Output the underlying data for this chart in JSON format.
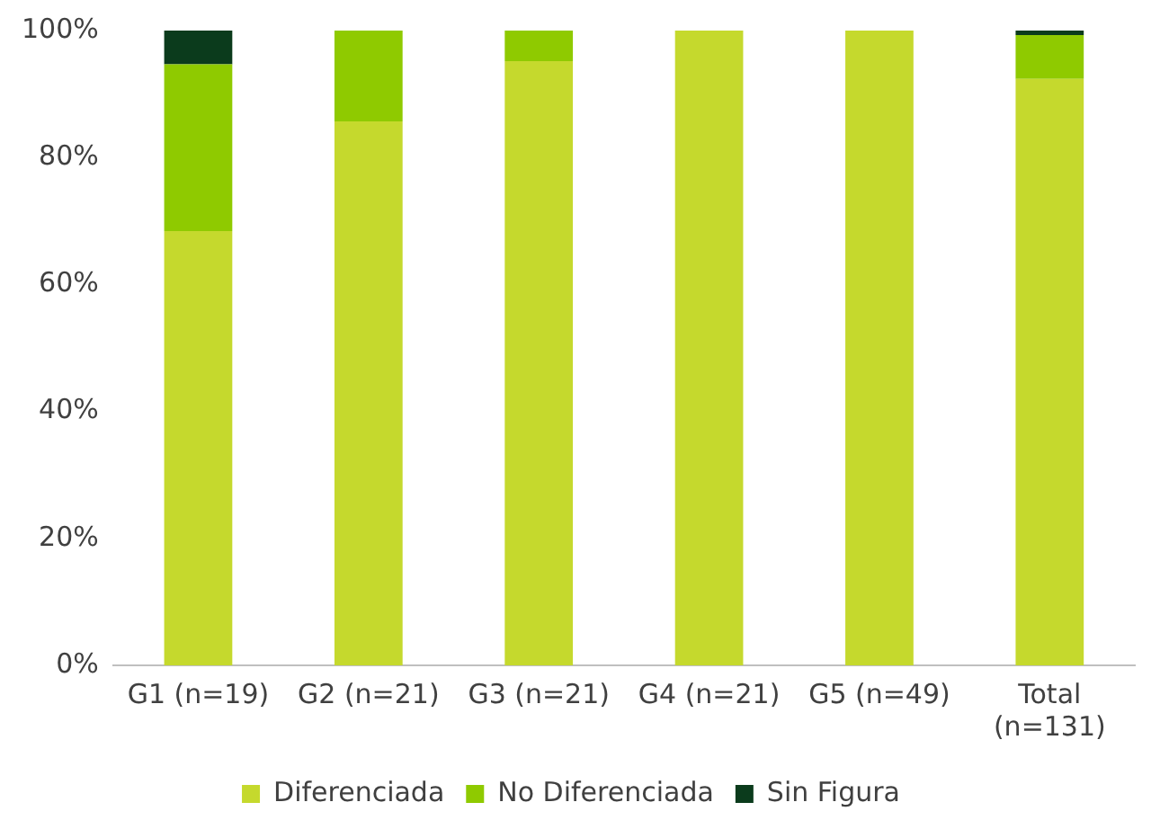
{
  "chart_data": {
    "type": "bar",
    "stacked": true,
    "categories": [
      "G1 (n=19)",
      "G2 (n=21)",
      "G3 (n=21)",
      "G4 (n=21)",
      "G5 (n=49)",
      "Total (n=131)"
    ],
    "series": [
      {
        "name": "Diferenciada",
        "color": "#c5d92d",
        "values": [
          68.4,
          85.7,
          95.2,
          100,
          100,
          92.4
        ]
      },
      {
        "name": "No Diferenciada",
        "color": "#8fca00",
        "values": [
          26.3,
          14.3,
          4.8,
          0,
          0,
          6.9
        ]
      },
      {
        "name": "Sin Figura",
        "color": "#0b3b1c",
        "values": [
          5.3,
          0,
          0,
          0,
          0,
          0.8
        ]
      }
    ],
    "ylim": [
      0,
      100
    ],
    "yticks": [
      {
        "value": 0,
        "label": "0%"
      },
      {
        "value": 20,
        "label": "20%"
      },
      {
        "value": 40,
        "label": "40%"
      },
      {
        "value": 60,
        "label": "60%"
      },
      {
        "value": 80,
        "label": "80%"
      },
      {
        "value": 100,
        "label": "100%"
      }
    ],
    "grid": false,
    "legend": "bottom"
  }
}
